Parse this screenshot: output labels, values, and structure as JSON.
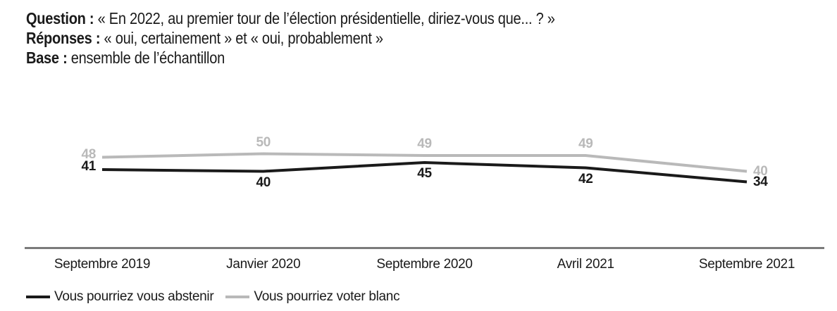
{
  "header": {
    "lines": [
      {
        "label": "Question :",
        "text": " « En 2022, au premier tour de l’élection présidentielle, diriez-vous que... ? »"
      },
      {
        "label": "Réponses :",
        "text": " « oui, certainement » et « oui, probablement »"
      },
      {
        "label": "Base :",
        "text": " ensemble de l’échantillon"
      }
    ]
  },
  "chart_data": {
    "type": "line",
    "categories": [
      "Septembre 2019",
      "Janvier 2020",
      "Septembre 2020",
      "Avril 2021",
      "Septembre 2021"
    ],
    "series": [
      {
        "name": "Vous pourriez vous abstenir",
        "color": "#1a1a1a",
        "values": [
          41,
          40,
          45,
          42,
          34
        ]
      },
      {
        "name": "Vous pourriez voter blanc",
        "color": "#b9b9b9",
        "values": [
          48,
          50,
          49,
          49,
          40
        ]
      }
    ],
    "ylim": [
      30,
      55
    ],
    "grid": false,
    "data_labels": true,
    "legend_position": "bottom-left",
    "axis_color": "#7b7b7b",
    "text_color": "#1a1a1a"
  }
}
